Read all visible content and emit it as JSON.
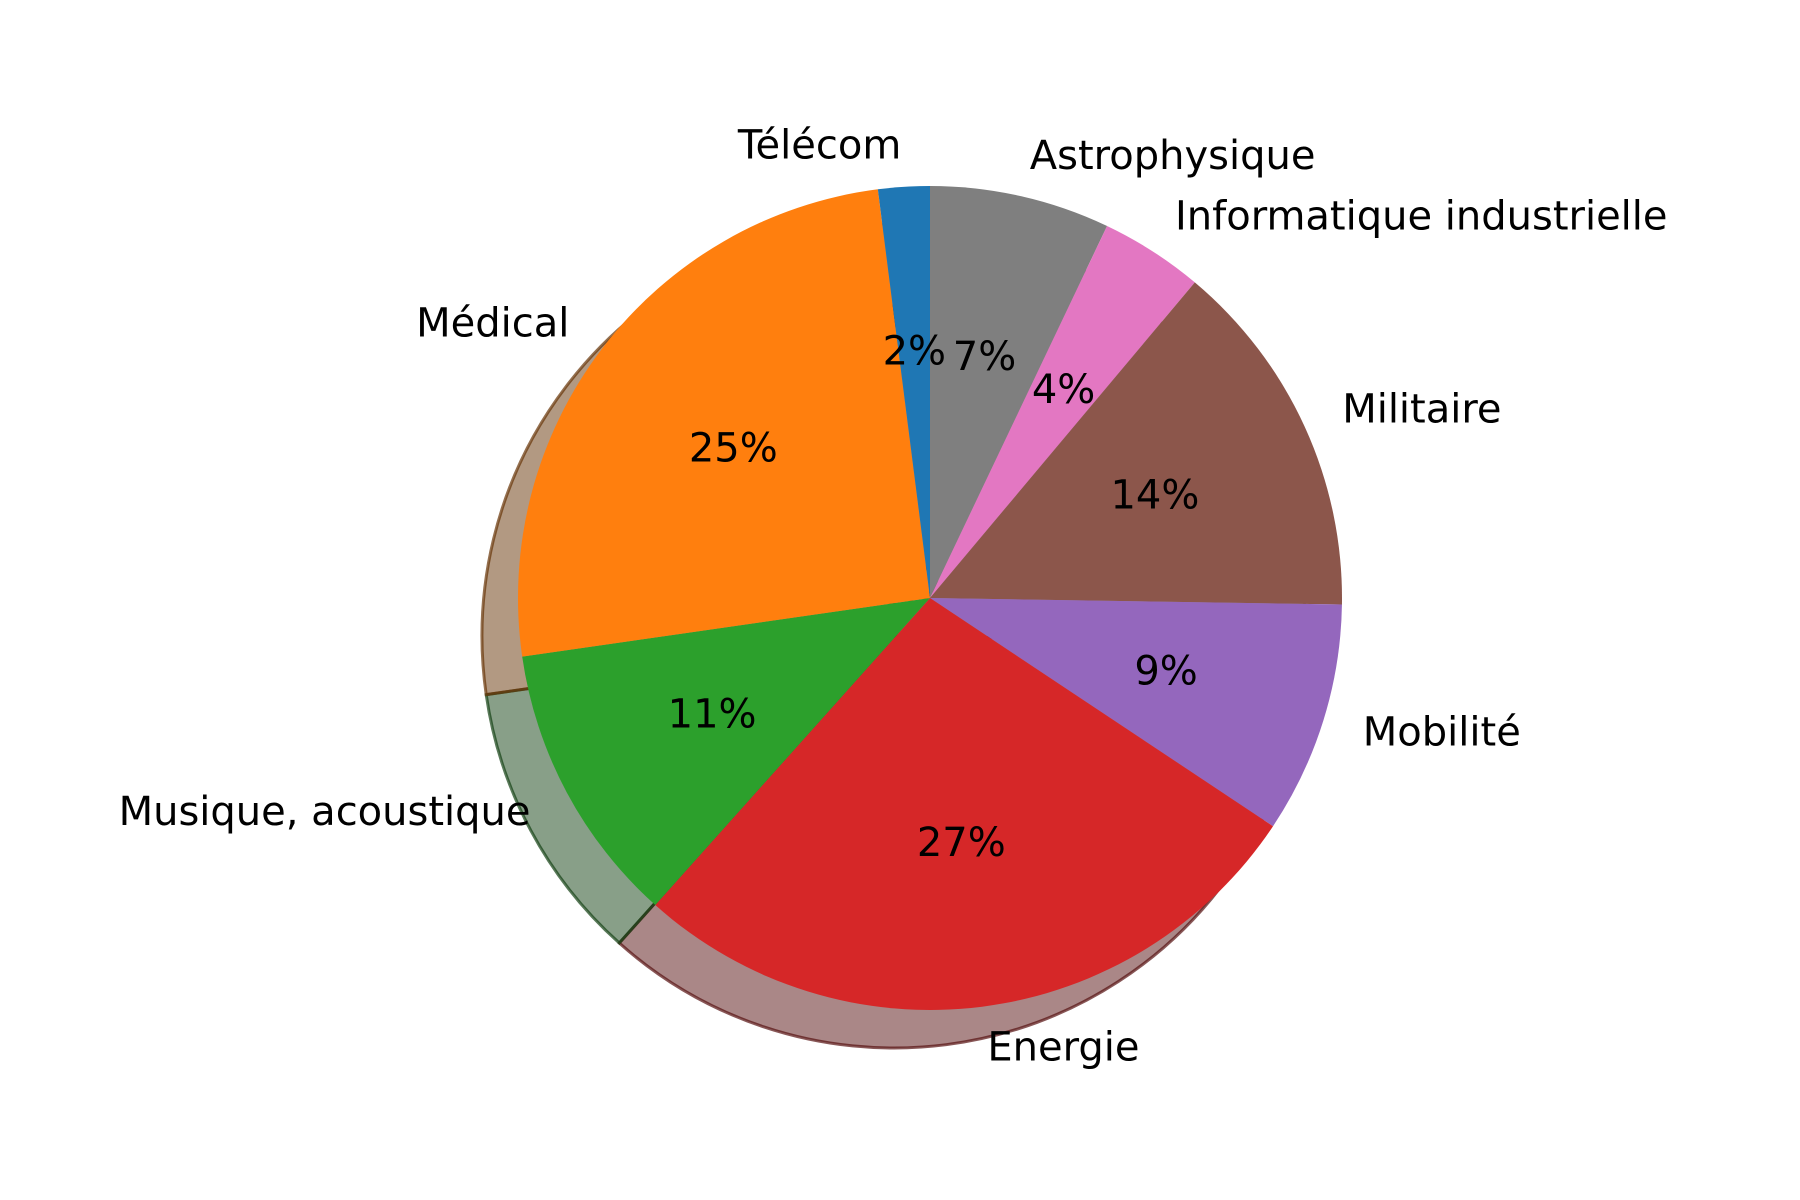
{
  "chart_data": {
    "type": "pie",
    "title": "",
    "start_angle": "top",
    "direction": "clockwise",
    "shadow": true,
    "slices": [
      {
        "label": "Astrophysique",
        "value": 7,
        "pct_label": "7%",
        "color": "#7f7f7f"
      },
      {
        "label": "Informatique industrielle",
        "value": 4,
        "pct_label": "4%",
        "color": "#e377c2"
      },
      {
        "label": "Militaire",
        "value": 14,
        "pct_label": "14%",
        "color": "#8c564b"
      },
      {
        "label": "Mobilité",
        "value": 9,
        "pct_label": "9%",
        "color": "#9467bd"
      },
      {
        "label": "Energie",
        "value": 27,
        "pct_label": "27%",
        "color": "#d62728"
      },
      {
        "label": "Musique, acoustique",
        "value": 11,
        "pct_label": "11%",
        "color": "#2ca02c"
      },
      {
        "label": "Médical",
        "value": 25,
        "pct_label": "25%",
        "color": "#ff7f0e"
      },
      {
        "label": "Télécom",
        "value": 2,
        "pct_label": "2%",
        "color": "#1f77b4"
      }
    ]
  }
}
